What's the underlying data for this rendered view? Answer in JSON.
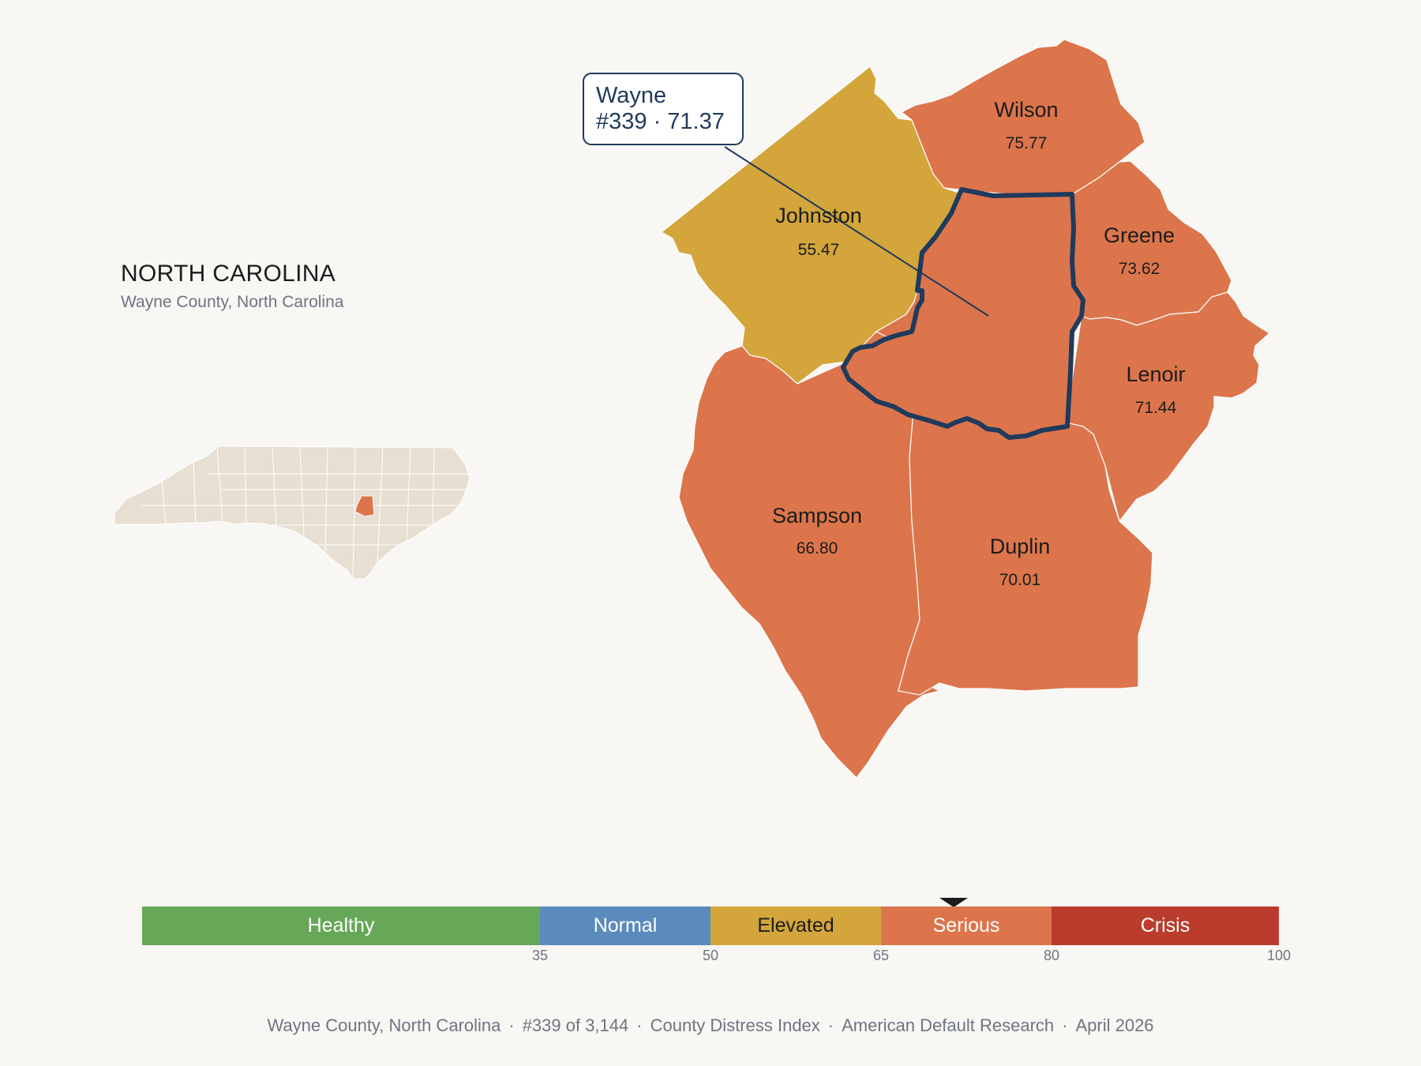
{
  "header": {
    "state_name": "NORTH CAROLINA",
    "subtitle": "Wayne County, North Carolina"
  },
  "callout": {
    "county": "Wayne",
    "rank_score": "#339 · 71.37"
  },
  "colors": {
    "healthy": "#67a758",
    "normal": "#5b8bbd",
    "elevated": "#d3a53b",
    "serious": "#dc754b",
    "crisis": "#bb3c2c",
    "highlight_outline": "#1f3a5c",
    "inset_fill": "#e6dfd2"
  },
  "counties": [
    {
      "name": "Johnston",
      "score": "55.47",
      "category": "elevated"
    },
    {
      "name": "Wilson",
      "score": "75.77",
      "category": "serious"
    },
    {
      "name": "Greene",
      "score": "73.62",
      "category": "serious"
    },
    {
      "name": "Lenoir",
      "score": "71.44",
      "category": "serious"
    },
    {
      "name": "Sampson",
      "score": "66.80",
      "category": "serious"
    },
    {
      "name": "Duplin",
      "score": "70.01",
      "category": "serious"
    },
    {
      "name": "Wayne",
      "score": "71.37",
      "category": "serious",
      "highlighted": true
    }
  ],
  "scale": {
    "min": 0,
    "max": 100,
    "current_value": 71.37,
    "segments": [
      {
        "label": "Healthy",
        "from": 0,
        "to": 35
      },
      {
        "label": "Normal",
        "from": 35,
        "to": 50
      },
      {
        "label": "Elevated",
        "from": 50,
        "to": 65
      },
      {
        "label": "Serious",
        "from": 65,
        "to": 80
      },
      {
        "label": "Crisis",
        "from": 80,
        "to": 100
      }
    ],
    "ticks": [
      "35",
      "50",
      "65",
      "80",
      "100"
    ]
  },
  "footer": {
    "county": "Wayne County, North Carolina",
    "rank": "#339 of 3,144",
    "index": "County Distress Index",
    "source": "American Default Research",
    "date": "April 2026",
    "separator": "·"
  }
}
